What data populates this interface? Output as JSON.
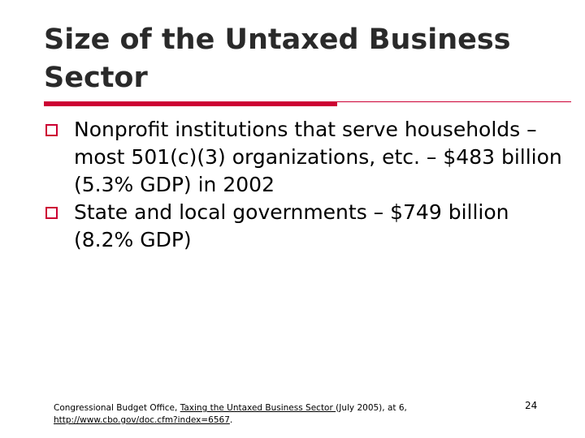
{
  "slide": {
    "title": "Size of the Untaxed Business Sector",
    "bullets": [
      "Nonprofit institutions that serve households – most 501(c)(3) organizations, etc. – $483 billion (5.3% GDP) in 2002",
      "State and local governments – $749 billion (8.2% GDP)"
    ],
    "footnote": {
      "source": "Congressional Budget Office, ",
      "publication": "Taxing the Untaxed Business Sector ",
      "details": "(July 2005), at 6,",
      "url": "http://www.cbo.gov/doc.cfm?index=6567",
      "trailing": "."
    },
    "page_number": "24"
  },
  "colors": {
    "accent": "#cc0033",
    "title": "#2a2a2a",
    "text": "#000000",
    "background": "#ffffff"
  },
  "icons": {
    "bullet": "hollow-square-bullet-icon"
  }
}
